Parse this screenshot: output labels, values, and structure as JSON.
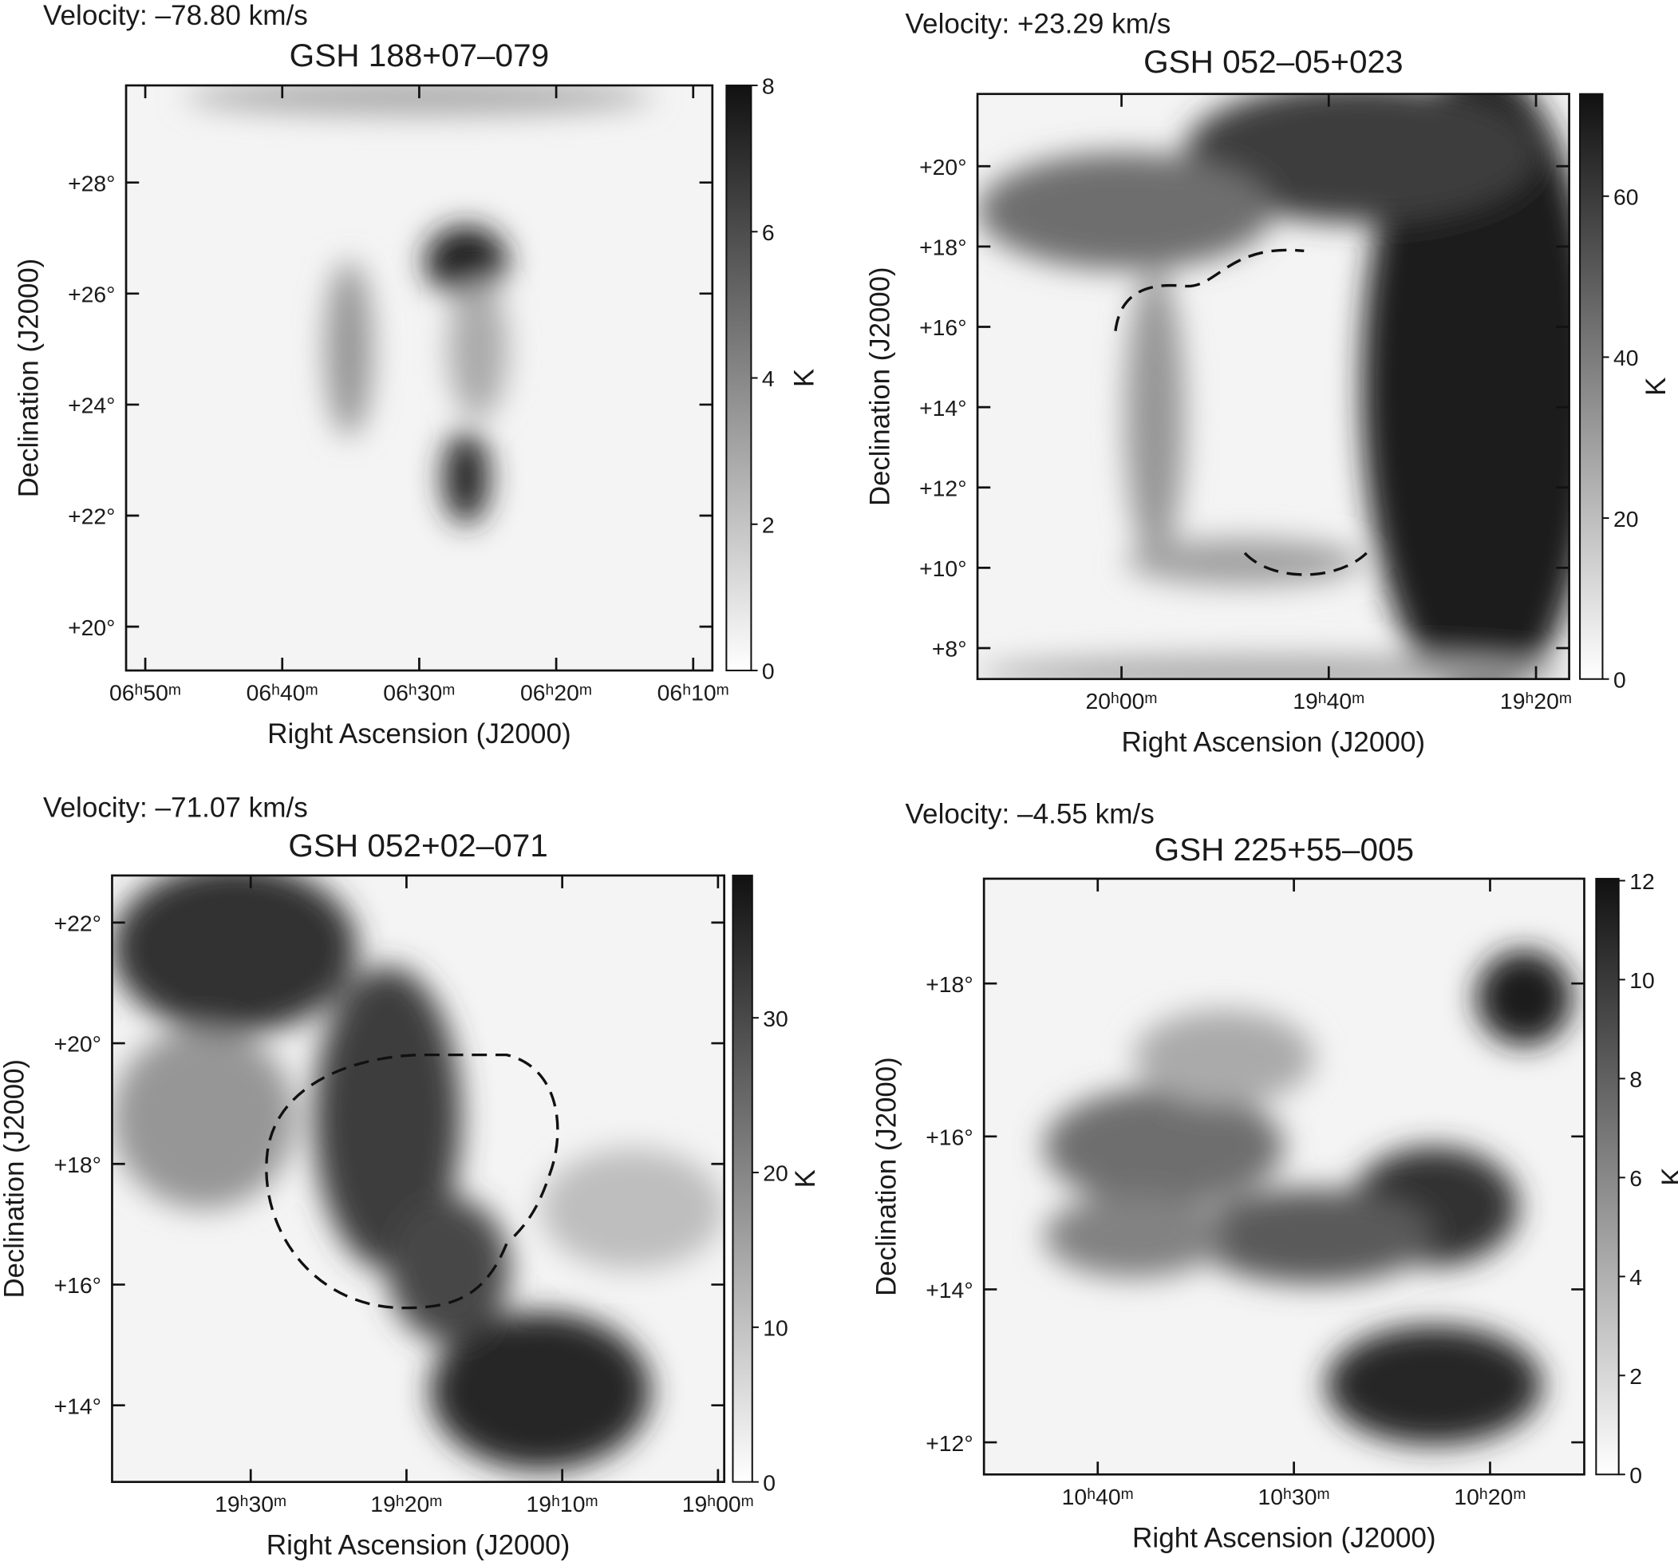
{
  "chart_data": [
    {
      "type": "heatmap",
      "annotation": "Velocity: –78.80 km/s",
      "title": "GSH 188+07–079",
      "xlabel": "Right Ascension (J2000)",
      "ylabel": "Declination (J2000)",
      "xlim": [
        411.4,
        368.6
      ],
      "xticks": [
        {
          "value": 410,
          "label": "06ʰ50ᵐ"
        },
        {
          "value": 400,
          "label": "06ʰ40ᵐ"
        },
        {
          "value": 390,
          "label": "06ʰ30ᵐ"
        },
        {
          "value": 380,
          "label": "06ʰ20ᵐ"
        },
        {
          "value": 370,
          "label": "06ʰ10ᵐ"
        }
      ],
      "ylim": [
        19.21,
        29.75
      ],
      "yticks": [
        {
          "value": 20,
          "label": "+20°"
        },
        {
          "value": 22,
          "label": "+22°"
        },
        {
          "value": 24,
          "label": "+24°"
        },
        {
          "value": 26,
          "label": "+26°"
        },
        {
          "value": 28,
          "label": "+28°"
        }
      ],
      "colorbar_label": "K",
      "clim": [
        0,
        8
      ],
      "cticks": [
        0,
        2,
        4,
        6,
        8
      ]
    },
    {
      "type": "heatmap",
      "annotation": "Velocity: +23.29 km/s",
      "title": "GSH 052–05+023",
      "xlabel": "Right Ascension (J2000)",
      "ylabel": "Declination (J2000)",
      "xlim": [
        1213.9,
        1156.8
      ],
      "xticks": [
        {
          "value": 1200,
          "label": "20ʰ00ᵐ"
        },
        {
          "value": 1180,
          "label": "19ʰ40ᵐ"
        },
        {
          "value": 1160,
          "label": "19ʰ20ᵐ"
        }
      ],
      "ylim": [
        7.23,
        21.8
      ],
      "yticks": [
        {
          "value": 8,
          "label": "+8°"
        },
        {
          "value": 10,
          "label": "+10°"
        },
        {
          "value": 12,
          "label": "+12°"
        },
        {
          "value": 14,
          "label": "+14°"
        },
        {
          "value": 16,
          "label": "+16°"
        },
        {
          "value": 18,
          "label": "+18°"
        },
        {
          "value": 20,
          "label": "+20°"
        }
      ],
      "colorbar_label": "K",
      "clim": [
        0,
        72.7
      ],
      "cticks": [
        0,
        20,
        40,
        60
      ]
    },
    {
      "type": "heatmap",
      "annotation": "Velocity: –71.07 km/s",
      "title": "GSH 052+02–071",
      "xlabel": "Right Ascension (J2000)",
      "ylabel": "Declination (J2000)",
      "xlim": [
        1178.9,
        1139.6
      ],
      "xticks": [
        {
          "value": 1170,
          "label": "19ʰ30ᵐ"
        },
        {
          "value": 1160,
          "label": "19ʰ20ᵐ"
        },
        {
          "value": 1150,
          "label": "19ʰ10ᵐ"
        },
        {
          "value": 1140,
          "label": "19ʰ00ᵐ"
        }
      ],
      "ylim": [
        12.73,
        22.78
      ],
      "yticks": [
        {
          "value": 14,
          "label": "+14°"
        },
        {
          "value": 16,
          "label": "+16°"
        },
        {
          "value": 18,
          "label": "+18°"
        },
        {
          "value": 20,
          "label": "+20°"
        },
        {
          "value": 22,
          "label": "+22°"
        }
      ],
      "colorbar_label": "K",
      "clim": [
        0,
        39.2
      ],
      "cticks": [
        0,
        10,
        20,
        30
      ]
    },
    {
      "type": "heatmap",
      "annotation": "Velocity: –4.55 km/s",
      "title": "GSH 225+55–005",
      "xlabel": "Right Ascension (J2000)",
      "ylabel": "Declination (J2000)",
      "xlim": [
        645.8,
        615.2
      ],
      "xticks": [
        {
          "value": 640,
          "label": "10ʰ40ᵐ"
        },
        {
          "value": 630,
          "label": "10ʰ30ᵐ"
        },
        {
          "value": 620,
          "label": "10ʰ20ᵐ"
        }
      ],
      "ylim": [
        11.58,
        19.37
      ],
      "yticks": [
        {
          "value": 12,
          "label": "+12°"
        },
        {
          "value": 14,
          "label": "+14°"
        },
        {
          "value": 16,
          "label": "+16°"
        },
        {
          "value": 18,
          "label": "+18°"
        }
      ],
      "colorbar_label": "K",
      "clim": [
        0,
        12.04
      ],
      "cticks": [
        0,
        2,
        4,
        6,
        8,
        10,
        12
      ]
    }
  ]
}
